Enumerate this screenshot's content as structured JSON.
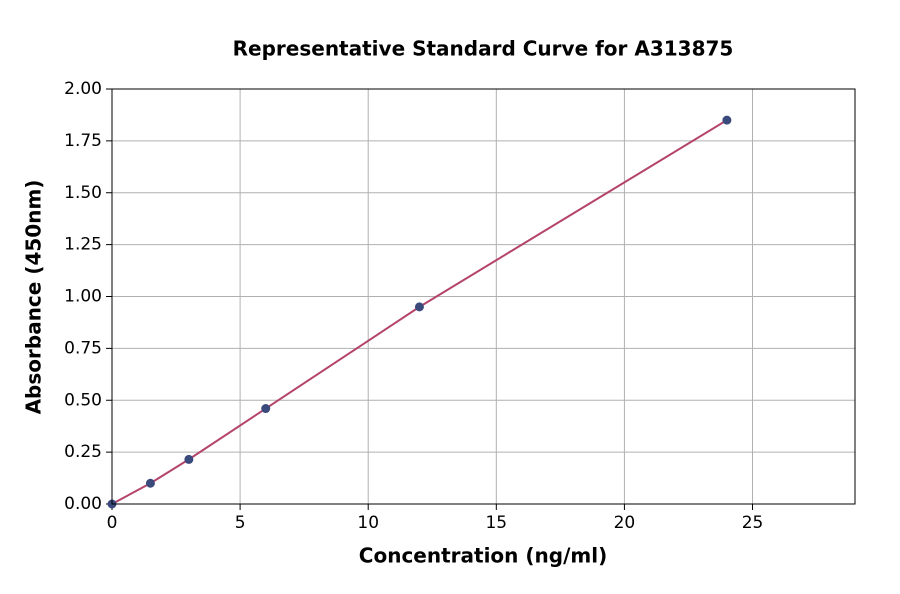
{
  "chart_data": {
    "type": "scatter",
    "title": "Representative Standard Curve for A313875",
    "x_label": "Concentration (ng/ml)",
    "y_label": "Absorbance (450nm)",
    "x": [
      0,
      1.5,
      3,
      6,
      12,
      24
    ],
    "values": [
      0,
      0.1,
      0.215,
      0.46,
      0.95,
      1.85
    ],
    "marker_color": "#3b4a7c",
    "line_color": "#b5446a",
    "xlim": [
      0,
      29
    ],
    "ylim": [
      0,
      2
    ],
    "xticks": [
      0,
      5,
      10,
      15,
      20,
      25
    ],
    "yticks": [
      {
        "value": 0,
        "label": "0.00"
      },
      {
        "value": 0.25,
        "label": "0.25"
      },
      {
        "value": 0.5,
        "label": "0.50"
      },
      {
        "value": 0.75,
        "label": "0.75"
      },
      {
        "value": 1,
        "label": "1.00"
      },
      {
        "value": 1.25,
        "label": "1.25"
      },
      {
        "value": 1.5,
        "label": "1.50"
      },
      {
        "value": 1.75,
        "label": "1.75"
      },
      {
        "value": 2,
        "label": "2.00"
      }
    ],
    "grid": true
  }
}
